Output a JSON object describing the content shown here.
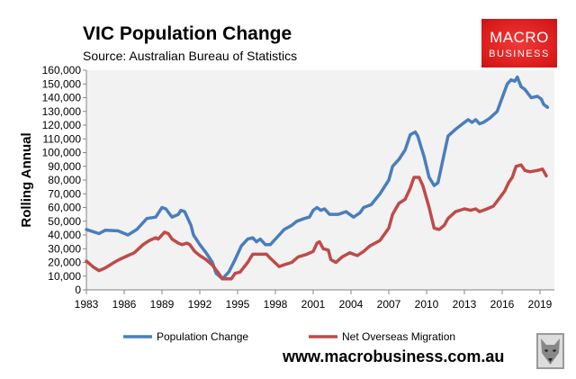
{
  "header": {
    "title": "VIC Population Change",
    "subtitle": "Source: Australian Bureau of Statistics"
  },
  "logo": {
    "line1": "MACRO",
    "line2": "BUSINESS",
    "color": "#dd1d1d"
  },
  "footer": {
    "url": "www.macrobusiness.com.au",
    "emblem": "wolf-head-icon"
  },
  "chart_data": {
    "type": "line",
    "title": "VIC Population Change",
    "xlabel": "",
    "ylabel": "Rolling Annual",
    "xlim": [
      1983,
      2020.1
    ],
    "ylim": [
      0,
      160000
    ],
    "xticks": [
      1983,
      1986,
      1989,
      1992,
      1995,
      1998,
      2001,
      2004,
      2007,
      2010,
      2013,
      2016,
      2019
    ],
    "yticks": [
      0,
      10000,
      20000,
      30000,
      40000,
      50000,
      60000,
      70000,
      80000,
      90000,
      100000,
      110000,
      120000,
      130000,
      140000,
      150000,
      160000
    ],
    "ytick_labels": [
      "0",
      "10,000",
      "20,000",
      "30,000",
      "40,000",
      "50,000",
      "60,000",
      "70,000",
      "80,000",
      "90,000",
      "100,000",
      "110,000",
      "120,000",
      "130,000",
      "140,000",
      "150,000",
      "160,000"
    ],
    "grid": false,
    "legend": "bottom",
    "series": [
      {
        "name": "Population Change",
        "color": "#4a7ebb",
        "points": [
          [
            1983,
            44000
          ],
          [
            1984,
            41000
          ],
          [
            1984.5,
            43500
          ],
          [
            1985.5,
            43000
          ],
          [
            1986.3,
            40000
          ],
          [
            1987,
            44000
          ],
          [
            1987.8,
            52000
          ],
          [
            1988.5,
            53000
          ],
          [
            1989,
            60000
          ],
          [
            1989.3,
            59000
          ],
          [
            1989.8,
            53000
          ],
          [
            1990.3,
            55000
          ],
          [
            1990.5,
            58000
          ],
          [
            1990.8,
            57000
          ],
          [
            1991.3,
            47000
          ],
          [
            1991.5,
            40000
          ],
          [
            1992,
            33000
          ],
          [
            1992.5,
            27000
          ],
          [
            1993,
            20000
          ],
          [
            1993.3,
            12000
          ],
          [
            1993.8,
            8000
          ],
          [
            1994.3,
            13000
          ],
          [
            1994.8,
            22000
          ],
          [
            1995.3,
            32000
          ],
          [
            1995.8,
            37000
          ],
          [
            1996.2,
            38000
          ],
          [
            1996.5,
            35000
          ],
          [
            1996.8,
            37000
          ],
          [
            1997.2,
            33000
          ],
          [
            1997.6,
            33000
          ],
          [
            1998.3,
            40000
          ],
          [
            1998.7,
            44000
          ],
          [
            1999.3,
            47000
          ],
          [
            1999.7,
            50000
          ],
          [
            2000.3,
            52000
          ],
          [
            2000.7,
            53000
          ],
          [
            2001,
            58000
          ],
          [
            2001.3,
            60000
          ],
          [
            2001.6,
            58000
          ],
          [
            2001.9,
            59000
          ],
          [
            2002.3,
            55000
          ],
          [
            2003,
            55000
          ],
          [
            2003.6,
            57000
          ],
          [
            2004.2,
            53000
          ],
          [
            2004.7,
            56000
          ],
          [
            2005,
            60000
          ],
          [
            2005.6,
            62000
          ],
          [
            2006.3,
            70000
          ],
          [
            2007,
            80000
          ],
          [
            2007.3,
            90000
          ],
          [
            2007.8,
            95000
          ],
          [
            2008.3,
            102000
          ],
          [
            2008.7,
            113000
          ],
          [
            2009.1,
            115000
          ],
          [
            2009.3,
            112000
          ],
          [
            2009.8,
            97000
          ],
          [
            2010.2,
            82000
          ],
          [
            2010.6,
            76000
          ],
          [
            2010.9,
            78000
          ],
          [
            2011.3,
            95000
          ],
          [
            2011.7,
            112000
          ],
          [
            2012.3,
            117000
          ],
          [
            2013,
            122000
          ],
          [
            2013.3,
            124000
          ],
          [
            2013.6,
            122000
          ],
          [
            2013.9,
            124000
          ],
          [
            2014.2,
            121000
          ],
          [
            2014.5,
            122000
          ],
          [
            2015,
            125000
          ],
          [
            2015.6,
            130000
          ],
          [
            2016,
            140000
          ],
          [
            2016.4,
            150000
          ],
          [
            2016.7,
            153000
          ],
          [
            2017,
            152000
          ],
          [
            2017.2,
            155000
          ],
          [
            2017.5,
            148000
          ],
          [
            2017.8,
            146000
          ],
          [
            2018.3,
            140000
          ],
          [
            2018.8,
            141000
          ],
          [
            2019.1,
            139000
          ],
          [
            2019.3,
            135000
          ],
          [
            2019.6,
            133000
          ]
        ]
      },
      {
        "name": "Net Overseas Migration",
        "color": "#be4b48",
        "points": [
          [
            1983,
            21000
          ],
          [
            1983.5,
            17000
          ],
          [
            1984,
            14000
          ],
          [
            1984.5,
            16000
          ],
          [
            1985.2,
            20000
          ],
          [
            1985.6,
            22000
          ],
          [
            1986.3,
            25000
          ],
          [
            1986.8,
            27000
          ],
          [
            1987.5,
            33000
          ],
          [
            1988,
            36000
          ],
          [
            1988.5,
            38000
          ],
          [
            1988.7,
            37000
          ],
          [
            1989.2,
            42000
          ],
          [
            1989.5,
            41000
          ],
          [
            1989.8,
            37000
          ],
          [
            1990.3,
            34000
          ],
          [
            1990.6,
            33000
          ],
          [
            1991,
            34000
          ],
          [
            1991.2,
            33000
          ],
          [
            1991.6,
            28000
          ],
          [
            1992,
            25000
          ],
          [
            1992.5,
            22000
          ],
          [
            1993,
            18000
          ],
          [
            1993.5,
            12000
          ],
          [
            1993.8,
            8000
          ],
          [
            1994.5,
            8000
          ],
          [
            1994.8,
            12000
          ],
          [
            1995.2,
            13000
          ],
          [
            1995.8,
            20000
          ],
          [
            1996.2,
            26000
          ],
          [
            1996.7,
            26000
          ],
          [
            1997.3,
            26000
          ],
          [
            1997.6,
            23000
          ],
          [
            1998.3,
            17000
          ],
          [
            1998.6,
            18000
          ],
          [
            1999.3,
            20000
          ],
          [
            1999.8,
            24000
          ],
          [
            2000.5,
            26000
          ],
          [
            2001,
            28000
          ],
          [
            2001.3,
            34000
          ],
          [
            2001.5,
            35000
          ],
          [
            2001.8,
            30000
          ],
          [
            2002.2,
            29000
          ],
          [
            2002.4,
            22000
          ],
          [
            2002.8,
            20000
          ],
          [
            2003.3,
            24000
          ],
          [
            2003.9,
            27000
          ],
          [
            2004.5,
            25000
          ],
          [
            2005,
            28000
          ],
          [
            2005.5,
            32000
          ],
          [
            2006.3,
            36000
          ],
          [
            2007,
            45000
          ],
          [
            2007.3,
            55000
          ],
          [
            2007.8,
            63000
          ],
          [
            2008.3,
            66000
          ],
          [
            2008.7,
            74000
          ],
          [
            2009,
            82000
          ],
          [
            2009.4,
            82000
          ],
          [
            2009.7,
            76000
          ],
          [
            2010.2,
            60000
          ],
          [
            2010.6,
            45000
          ],
          [
            2011,
            44000
          ],
          [
            2011.4,
            47000
          ],
          [
            2011.7,
            52000
          ],
          [
            2012.3,
            57000
          ],
          [
            2013,
            59000
          ],
          [
            2013.5,
            58000
          ],
          [
            2013.9,
            59000
          ],
          [
            2014.2,
            57000
          ],
          [
            2014.8,
            59000
          ],
          [
            2015.3,
            61000
          ],
          [
            2015.8,
            67000
          ],
          [
            2016.2,
            72000
          ],
          [
            2016.5,
            78000
          ],
          [
            2016.8,
            82000
          ],
          [
            2017.1,
            90000
          ],
          [
            2017.5,
            91000
          ],
          [
            2017.8,
            87000
          ],
          [
            2018.2,
            86000
          ],
          [
            2018.8,
            87000
          ],
          [
            2019.2,
            88000
          ],
          [
            2019.5,
            83000
          ]
        ]
      }
    ]
  }
}
